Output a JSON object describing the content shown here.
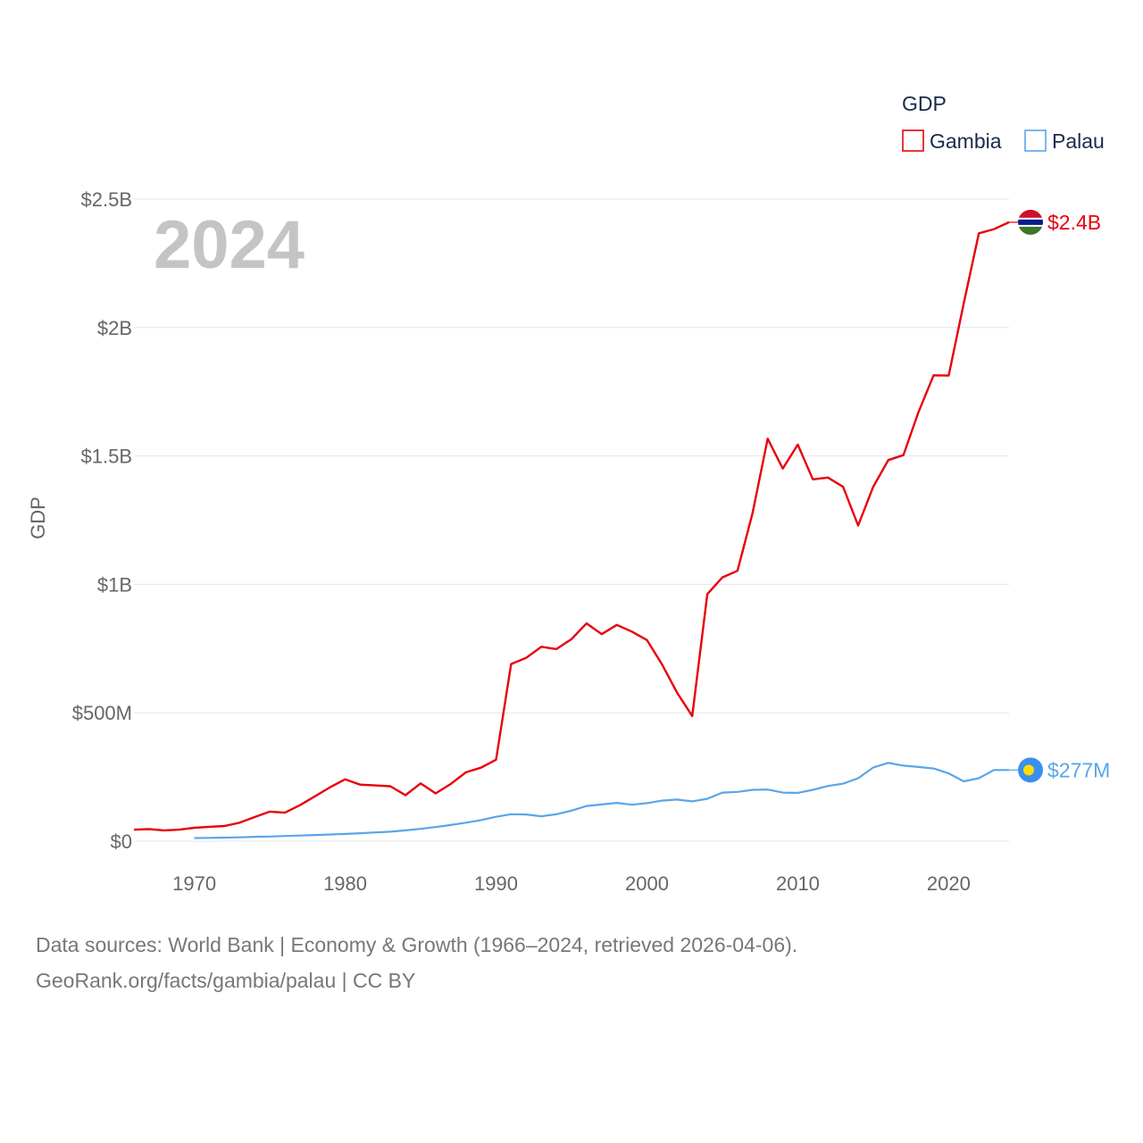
{
  "chart_data": {
    "type": "line",
    "year_label": "2024",
    "ylabel": "GDP",
    "legend_title": "GDP",
    "x_ticks": [
      1970,
      1980,
      1990,
      2000,
      2010,
      2020
    ],
    "xlim": [
      1966,
      2024
    ],
    "ylim": [
      0,
      2500000000
    ],
    "y_ticks": [
      {
        "value": 0,
        "label": "$0"
      },
      {
        "value": 500000000,
        "label": "$500M"
      },
      {
        "value": 1000000000,
        "label": "$1B"
      },
      {
        "value": 1500000000,
        "label": "$1.5B"
      },
      {
        "value": 2000000000,
        "label": "$2B"
      },
      {
        "value": 2500000000,
        "label": "$2.5B"
      }
    ],
    "grid": true,
    "series": [
      {
        "name": "Gambia",
        "color": "#e8000b",
        "end_label": "$2.4B",
        "flag": "gambia-flag",
        "x": [
          1966,
          1967,
          1968,
          1969,
          1970,
          1971,
          1972,
          1973,
          1974,
          1975,
          1976,
          1977,
          1978,
          1979,
          1980,
          1981,
          1982,
          1983,
          1984,
          1985,
          1986,
          1987,
          1988,
          1989,
          1990,
          1991,
          1992,
          1993,
          1994,
          1995,
          1996,
          1997,
          1998,
          1999,
          2000,
          2001,
          2002,
          2003,
          2004,
          2005,
          2006,
          2007,
          2008,
          2009,
          2010,
          2011,
          2012,
          2013,
          2014,
          2015,
          2016,
          2017,
          2018,
          2019,
          2020,
          2021,
          2022,
          2023,
          2024
        ],
        "values": [
          45000000,
          47000000,
          42000000,
          45000000,
          52000000,
          56000000,
          59000000,
          72000000,
          94000000,
          115000000,
          111000000,
          140000000,
          175000000,
          210000000,
          241000000,
          220000000,
          217000000,
          214000000,
          179000000,
          225000000,
          186000000,
          223000000,
          268000000,
          286000000,
          317000000,
          690000000,
          714000000,
          757000000,
          748000000,
          787000000,
          848000000,
          806000000,
          842000000,
          816000000,
          783000000,
          688000000,
          578000000,
          487000000,
          962000000,
          1027000000,
          1053000000,
          1278000000,
          1567000000,
          1451000000,
          1544000000,
          1409000000,
          1416000000,
          1380000000,
          1229000000,
          1380000000,
          1484000000,
          1503000000,
          1671000000,
          1814000000,
          1813000000,
          2095000000,
          2367000000,
          2383000000,
          2410000000
        ]
      },
      {
        "name": "Palau",
        "color": "#5aa5e8",
        "end_label": "$277M",
        "flag": "palau-flag",
        "x": [
          1970,
          1971,
          1972,
          1973,
          1974,
          1975,
          1976,
          1977,
          1978,
          1979,
          1980,
          1981,
          1982,
          1983,
          1984,
          1985,
          1986,
          1987,
          1988,
          1989,
          1990,
          1991,
          1992,
          1993,
          1994,
          1995,
          1996,
          1997,
          1998,
          1999,
          2000,
          2001,
          2002,
          2003,
          2004,
          2005,
          2006,
          2007,
          2008,
          2009,
          2010,
          2011,
          2012,
          2013,
          2014,
          2015,
          2016,
          2017,
          2018,
          2019,
          2020,
          2021,
          2022,
          2023,
          2024
        ],
        "values": [
          12000000,
          13000000,
          14000000,
          15000000,
          17000000,
          18000000,
          20000000,
          22000000,
          24000000,
          26000000,
          28000000,
          31000000,
          34000000,
          37000000,
          42000000,
          48000000,
          55000000,
          63000000,
          72000000,
          82000000,
          95000000,
          105000000,
          104000000,
          97000000,
          105000000,
          119000000,
          137000000,
          143000000,
          149000000,
          142000000,
          148000000,
          158000000,
          162000000,
          155000000,
          165000000,
          189000000,
          192000000,
          200000000,
          201000000,
          189000000,
          188000000,
          200000000,
          215000000,
          224000000,
          245000000,
          287000000,
          305000000,
          294000000,
          289000000,
          283000000,
          264000000,
          233000000,
          245000000,
          277000000,
          277000000
        ]
      }
    ]
  },
  "footer": {
    "line1": "Data sources: World Bank | Economy & Growth (1966–2024, retrieved 2026-04-06).",
    "line2": "GeoRank.org/facts/gambia/palau | CC BY"
  }
}
